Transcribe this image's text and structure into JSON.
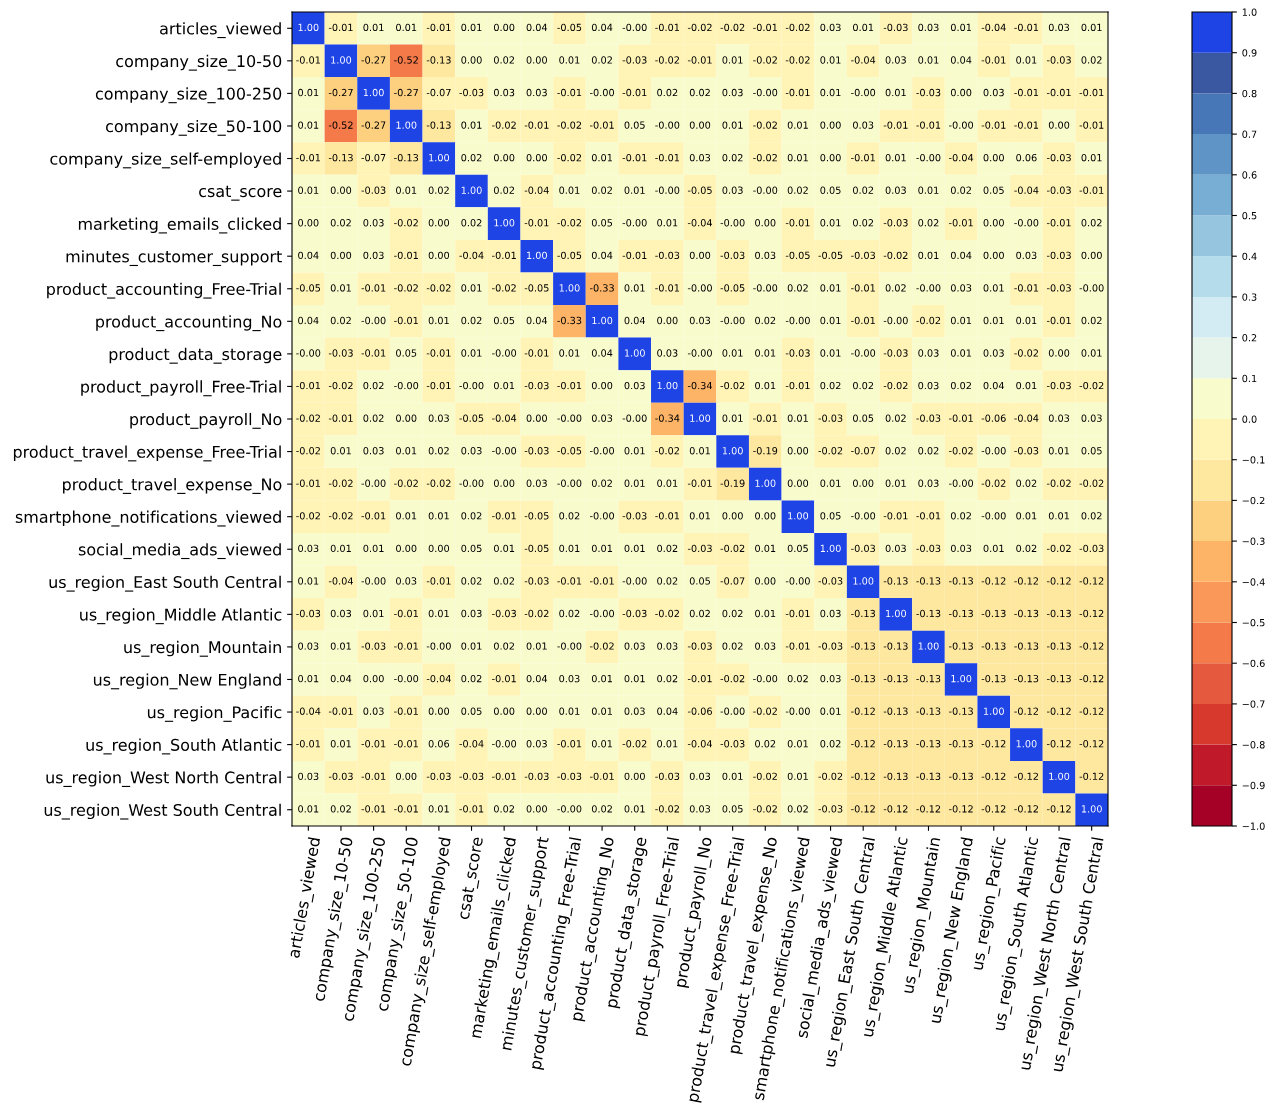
{
  "chart_data": {
    "type": "heatmap",
    "categories": [
      "articles_viewed",
      "company_size_10-50",
      "company_size_100-250",
      "company_size_50-100",
      "company_size_self-employed",
      "csat_score",
      "marketing_emails_clicked",
      "minutes_customer_support",
      "product_accounting_Free-Trial",
      "product_accounting_No",
      "product_data_storage",
      "product_payroll_Free-Trial",
      "product_payroll_No",
      "product_travel_expense_Free-Trial",
      "product_travel_expense_No",
      "smartphone_notifications_viewed",
      "social_media_ads_viewed",
      "us_region_East South Central",
      "us_region_Middle Atlantic",
      "us_region_Mountain",
      "us_region_New England",
      "us_region_Pacific",
      "us_region_South Atlantic",
      "us_region_West North Central",
      "us_region_West South Central"
    ],
    "y_categories": [
      "articles_viewed",
      "company_size_10-50",
      "company_size_100-250",
      "company_size_50-100",
      "company_size_self-employed",
      "csat_score",
      "marketing_emails_clicked",
      "minutes_customer_support",
      "product_accounting_Free-Trial",
      "product_accounting_No",
      "product_data_storage",
      "product_payroll_Free-Trial",
      "product_payroll_No",
      "product_travel_expense_Free-Trial",
      "product_travel_expense_No",
      "smartphone_notifications_viewed",
      "social_media_ads_viewed",
      "us_region_East South Central",
      "us_region_Middle Atlantic",
      "us_region_Mountain",
      "us_region_New England",
      "us_region_Pacific",
      "us_region_South Atlantic",
      "us_region_West North Central",
      "us_region_West South Central"
    ],
    "cells": [
      [
        1.0,
        -0.01,
        0.01,
        0.01,
        -0.01,
        0.01,
        0.0,
        0.04,
        -0.05,
        0.04,
        -0.0,
        -0.01,
        -0.02,
        -0.02,
        -0.01,
        -0.02,
        0.03,
        0.01,
        -0.03,
        0.03,
        0.01,
        -0.04,
        -0.01,
        0.03,
        0.01
      ],
      [
        -0.01,
        1.0,
        -0.27,
        -0.52,
        -0.13,
        0.0,
        0.02,
        0.0,
        0.01,
        0.02,
        -0.03,
        -0.02,
        -0.01,
        0.01,
        -0.02,
        -0.02,
        0.01,
        -0.04,
        0.03,
        0.01,
        0.04,
        -0.01,
        0.01,
        -0.03,
        0.02
      ],
      [
        0.01,
        -0.27,
        1.0,
        -0.27,
        -0.07,
        -0.03,
        0.03,
        0.03,
        -0.01,
        -0.0,
        -0.01,
        0.02,
        0.02,
        0.03,
        -0.0,
        -0.01,
        0.01,
        -0.0,
        0.01,
        -0.03,
        0.0,
        0.03,
        -0.01,
        -0.01,
        -0.01
      ],
      [
        0.01,
        -0.52,
        -0.27,
        1.0,
        -0.13,
        0.01,
        -0.02,
        -0.01,
        -0.02,
        -0.01,
        0.05,
        -0.0,
        0.0,
        0.01,
        -0.02,
        0.01,
        0.0,
        0.03,
        -0.01,
        -0.01,
        -0.0,
        -0.01,
        -0.01,
        0.0,
        -0.01
      ],
      [
        -0.01,
        -0.13,
        -0.07,
        -0.13,
        1.0,
        0.02,
        0.0,
        0.0,
        -0.02,
        0.01,
        -0.01,
        -0.01,
        0.03,
        0.02,
        -0.02,
        0.01,
        0.0,
        -0.01,
        0.01,
        -0.0,
        -0.04,
        0.0,
        0.06,
        -0.03,
        0.01
      ],
      [
        0.01,
        0.0,
        -0.03,
        0.01,
        0.02,
        1.0,
        0.02,
        -0.04,
        0.01,
        0.02,
        0.01,
        -0.0,
        -0.05,
        0.03,
        -0.0,
        0.02,
        0.05,
        0.02,
        0.03,
        0.01,
        0.02,
        0.05,
        -0.04,
        -0.03,
        -0.01
      ],
      [
        0.0,
        0.02,
        0.03,
        -0.02,
        0.0,
        0.02,
        1.0,
        -0.01,
        -0.02,
        0.05,
        -0.0,
        0.01,
        -0.04,
        -0.0,
        0.0,
        -0.01,
        0.01,
        0.02,
        -0.03,
        0.02,
        -0.01,
        0.0,
        -0.0,
        -0.01,
        0.02
      ],
      [
        0.04,
        0.0,
        0.03,
        -0.01,
        0.0,
        -0.04,
        -0.01,
        1.0,
        -0.05,
        0.04,
        -0.01,
        -0.03,
        0.0,
        -0.03,
        0.03,
        -0.05,
        -0.05,
        -0.03,
        -0.02,
        0.01,
        0.04,
        0.0,
        0.03,
        -0.03,
        0.0
      ],
      [
        -0.05,
        0.01,
        -0.01,
        -0.02,
        -0.02,
        0.01,
        -0.02,
        -0.05,
        1.0,
        -0.33,
        0.01,
        -0.01,
        -0.0,
        -0.05,
        -0.0,
        0.02,
        0.01,
        -0.01,
        0.02,
        -0.0,
        0.03,
        0.01,
        -0.01,
        -0.03,
        -0.0
      ],
      [
        0.04,
        0.02,
        -0.0,
        -0.01,
        0.01,
        0.02,
        0.05,
        0.04,
        -0.33,
        1.0,
        0.04,
        0.0,
        0.03,
        -0.0,
        0.02,
        -0.0,
        0.01,
        -0.01,
        -0.0,
        -0.02,
        0.01,
        0.01,
        0.01,
        -0.01,
        0.02
      ],
      [
        -0.0,
        -0.03,
        -0.01,
        0.05,
        -0.01,
        0.01,
        -0.0,
        -0.01,
        0.01,
        0.04,
        1.0,
        0.03,
        -0.0,
        0.01,
        0.01,
        -0.03,
        0.01,
        -0.0,
        -0.03,
        0.03,
        0.01,
        0.03,
        -0.02,
        0.0,
        0.01
      ],
      [
        -0.01,
        -0.02,
        0.02,
        -0.0,
        -0.01,
        -0.0,
        0.01,
        -0.03,
        -0.01,
        0.0,
        0.03,
        1.0,
        -0.34,
        -0.02,
        0.01,
        -0.01,
        0.02,
        0.02,
        -0.02,
        0.03,
        0.02,
        0.04,
        0.01,
        -0.03,
        -0.02
      ],
      [
        -0.02,
        -0.01,
        0.02,
        0.0,
        0.03,
        -0.05,
        -0.04,
        0.0,
        -0.0,
        0.03,
        -0.0,
        -0.34,
        1.0,
        0.01,
        -0.01,
        0.01,
        -0.03,
        0.05,
        0.02,
        -0.03,
        -0.01,
        -0.06,
        -0.04,
        0.03,
        0.03
      ],
      [
        -0.02,
        0.01,
        0.03,
        0.01,
        0.02,
        0.03,
        -0.0,
        -0.03,
        -0.05,
        -0.0,
        0.01,
        -0.02,
        0.01,
        1.0,
        -0.19,
        0.0,
        -0.02,
        -0.07,
        0.02,
        0.02,
        -0.02,
        -0.0,
        -0.03,
        0.01,
        0.05
      ],
      [
        -0.01,
        -0.02,
        -0.0,
        -0.02,
        -0.02,
        -0.0,
        0.0,
        0.03,
        -0.0,
        0.02,
        0.01,
        0.01,
        -0.01,
        -0.19,
        1.0,
        0.0,
        0.01,
        0.0,
        0.01,
        0.03,
        -0.0,
        -0.02,
        0.02,
        -0.02,
        -0.02
      ],
      [
        -0.02,
        -0.02,
        -0.01,
        0.01,
        0.01,
        0.02,
        -0.01,
        -0.05,
        0.02,
        -0.0,
        -0.03,
        -0.01,
        0.01,
        0.0,
        0.0,
        1.0,
        0.05,
        -0.0,
        -0.01,
        -0.01,
        0.02,
        -0.0,
        0.01,
        0.01,
        0.02
      ],
      [
        0.03,
        0.01,
        0.01,
        0.0,
        0.0,
        0.05,
        0.01,
        -0.05,
        0.01,
        0.01,
        0.01,
        0.02,
        -0.03,
        -0.02,
        0.01,
        0.05,
        1.0,
        -0.03,
        0.03,
        -0.03,
        0.03,
        0.01,
        0.02,
        -0.02,
        -0.03
      ],
      [
        0.01,
        -0.04,
        -0.0,
        0.03,
        -0.01,
        0.02,
        0.02,
        -0.03,
        -0.01,
        -0.01,
        -0.0,
        0.02,
        0.05,
        -0.07,
        0.0,
        -0.0,
        -0.03,
        1.0,
        -0.13,
        -0.13,
        -0.13,
        -0.12,
        -0.12,
        -0.12,
        -0.12
      ],
      [
        -0.03,
        0.03,
        0.01,
        -0.01,
        0.01,
        0.03,
        -0.03,
        -0.02,
        0.02,
        -0.0,
        -0.03,
        -0.02,
        0.02,
        0.02,
        0.01,
        -0.01,
        0.03,
        -0.13,
        1.0,
        -0.13,
        -0.13,
        -0.13,
        -0.13,
        -0.13,
        -0.12
      ],
      [
        0.03,
        0.01,
        -0.03,
        -0.01,
        -0.0,
        0.01,
        0.02,
        0.01,
        -0.0,
        -0.02,
        0.03,
        0.03,
        -0.03,
        0.02,
        0.03,
        -0.01,
        -0.03,
        -0.13,
        -0.13,
        1.0,
        -0.13,
        -0.13,
        -0.13,
        -0.13,
        -0.12
      ],
      [
        0.01,
        0.04,
        0.0,
        -0.0,
        -0.04,
        0.02,
        -0.01,
        0.04,
        0.03,
        0.01,
        0.01,
        0.02,
        -0.01,
        -0.02,
        -0.0,
        0.02,
        0.03,
        -0.13,
        -0.13,
        -0.13,
        1.0,
        -0.13,
        -0.13,
        -0.13,
        -0.12
      ],
      [
        -0.04,
        -0.01,
        0.03,
        -0.01,
        0.0,
        0.05,
        0.0,
        0.0,
        0.01,
        0.01,
        0.03,
        0.04,
        -0.06,
        -0.0,
        -0.02,
        -0.0,
        0.01,
        -0.12,
        -0.13,
        -0.13,
        -0.13,
        1.0,
        -0.12,
        -0.12,
        -0.12
      ],
      [
        -0.01,
        0.01,
        -0.01,
        -0.01,
        0.06,
        -0.04,
        -0.0,
        0.03,
        -0.01,
        0.01,
        -0.02,
        0.01,
        -0.04,
        -0.03,
        0.02,
        0.01,
        0.02,
        -0.12,
        -0.13,
        -0.13,
        -0.13,
        -0.12,
        1.0,
        -0.12,
        -0.12
      ],
      [
        0.03,
        -0.03,
        -0.01,
        0.0,
        -0.03,
        -0.03,
        -0.01,
        -0.03,
        -0.03,
        -0.01,
        0.0,
        -0.03,
        0.03,
        0.01,
        -0.02,
        0.01,
        -0.02,
        -0.12,
        -0.13,
        -0.13,
        -0.13,
        -0.12,
        -0.12,
        1.0,
        -0.12
      ],
      [
        0.01,
        0.02,
        -0.01,
        -0.01,
        0.01,
        -0.01,
        0.02,
        0.0,
        -0.0,
        0.02,
        0.01,
        -0.02,
        0.03,
        0.05,
        -0.02,
        0.02,
        -0.03,
        -0.12,
        -0.12,
        -0.12,
        -0.12,
        -0.12,
        -0.12,
        -0.12,
        1.0
      ]
    ],
    "cell_labels": [
      [
        "1.00",
        "-0.01",
        "0.01",
        "0.01",
        "-0.01",
        "0.01",
        "0.00",
        "0.04",
        "-0.05",
        "0.04",
        "-0.00",
        "-0.01",
        "-0.02",
        "-0.02",
        "-0.01",
        "-0.02",
        "0.03",
        "0.01",
        "-0.03",
        "0.03",
        "0.01",
        "-0.04",
        "-0.01",
        "0.03",
        "0.01"
      ],
      [
        "-0.01",
        "1.00",
        "-0.27",
        "-0.52",
        "-0.13",
        "0.00",
        "0.02",
        "0.00",
        "0.01",
        "0.02",
        "-0.03",
        "-0.02",
        "-0.01",
        "0.01",
        "-0.02",
        "-0.02",
        "0.01",
        "-0.04",
        "0.03",
        "0.01",
        "0.04",
        "-0.01",
        "0.01",
        "-0.03",
        "0.02"
      ],
      [
        "0.01",
        "-0.27",
        "1.00",
        "-0.27",
        "-0.07",
        "-0.03",
        "0.03",
        "0.03",
        "-0.01",
        "-0.00",
        "-0.01",
        "0.02",
        "0.02",
        "0.03",
        "-0.00",
        "-0.01",
        "0.01",
        "-0.00",
        "0.01",
        "-0.03",
        "0.00",
        "0.03",
        "-0.01",
        "-0.01",
        "-0.01"
      ],
      [
        "0.01",
        "-0.52",
        "-0.27",
        "1.00",
        "-0.13",
        "0.01",
        "-0.02",
        "-0.01",
        "-0.02",
        "-0.01",
        "0.05",
        "-0.00",
        "0.00",
        "0.01",
        "-0.02",
        "0.01",
        "0.00",
        "0.03",
        "-0.01",
        "-0.01",
        "-0.00",
        "-0.01",
        "-0.01",
        "0.00",
        "-0.01"
      ],
      [
        "-0.01",
        "-0.13",
        "-0.07",
        "-0.13",
        "1.00",
        "0.02",
        "0.00",
        "0.00",
        "-0.02",
        "0.01",
        "-0.01",
        "-0.01",
        "0.03",
        "0.02",
        "-0.02",
        "0.01",
        "0.00",
        "-0.01",
        "0.01",
        "-0.00",
        "-0.04",
        "0.00",
        "0.06",
        "-0.03",
        "0.01"
      ],
      [
        "0.01",
        "0.00",
        "-0.03",
        "0.01",
        "0.02",
        "1.00",
        "0.02",
        "-0.04",
        "0.01",
        "0.02",
        "0.01",
        "-0.00",
        "-0.05",
        "0.03",
        "-0.00",
        "0.02",
        "0.05",
        "0.02",
        "0.03",
        "0.01",
        "0.02",
        "0.05",
        "-0.04",
        "-0.03",
        "-0.01"
      ],
      [
        "0.00",
        "0.02",
        "0.03",
        "-0.02",
        "0.00",
        "0.02",
        "1.00",
        "-0.01",
        "-0.02",
        "0.05",
        "-0.00",
        "0.01",
        "-0.04",
        "-0.00",
        "0.00",
        "-0.01",
        "0.01",
        "0.02",
        "-0.03",
        "0.02",
        "-0.01",
        "0.00",
        "-0.00",
        "-0.01",
        "0.02"
      ],
      [
        "0.04",
        "0.00",
        "0.03",
        "-0.01",
        "0.00",
        "-0.04",
        "-0.01",
        "1.00",
        "-0.05",
        "0.04",
        "-0.01",
        "-0.03",
        "0.00",
        "-0.03",
        "0.03",
        "-0.05",
        "-0.05",
        "-0.03",
        "-0.02",
        "0.01",
        "0.04",
        "0.00",
        "0.03",
        "-0.03",
        "0.00"
      ],
      [
        "-0.05",
        "0.01",
        "-0.01",
        "-0.02",
        "-0.02",
        "0.01",
        "-0.02",
        "-0.05",
        "1.00",
        "-0.33",
        "0.01",
        "-0.01",
        "-0.00",
        "-0.05",
        "-0.00",
        "0.02",
        "0.01",
        "-0.01",
        "0.02",
        "-0.00",
        "0.03",
        "0.01",
        "-0.01",
        "-0.03",
        "-0.00"
      ],
      [
        "0.04",
        "0.02",
        "-0.00",
        "-0.01",
        "0.01",
        "0.02",
        "0.05",
        "0.04",
        "-0.33",
        "1.00",
        "0.04",
        "0.00",
        "0.03",
        "-0.00",
        "0.02",
        "-0.00",
        "0.01",
        "-0.01",
        "-0.00",
        "-0.02",
        "0.01",
        "0.01",
        "0.01",
        "-0.01",
        "0.02"
      ],
      [
        "-0.00",
        "-0.03",
        "-0.01",
        "0.05",
        "-0.01",
        "0.01",
        "-0.00",
        "-0.01",
        "0.01",
        "0.04",
        "1.00",
        "0.03",
        "-0.00",
        "0.01",
        "0.01",
        "-0.03",
        "0.01",
        "-0.00",
        "-0.03",
        "0.03",
        "0.01",
        "0.03",
        "-0.02",
        "0.00",
        "0.01"
      ],
      [
        "-0.01",
        "-0.02",
        "0.02",
        "-0.00",
        "-0.01",
        "-0.00",
        "0.01",
        "-0.03",
        "-0.01",
        "0.00",
        "0.03",
        "1.00",
        "-0.34",
        "-0.02",
        "0.01",
        "-0.01",
        "0.02",
        "0.02",
        "-0.02",
        "0.03",
        "0.02",
        "0.04",
        "0.01",
        "-0.03",
        "-0.02"
      ],
      [
        "-0.02",
        "-0.01",
        "0.02",
        "0.00",
        "0.03",
        "-0.05",
        "-0.04",
        "0.00",
        "-0.00",
        "0.03",
        "-0.00",
        "-0.34",
        "1.00",
        "0.01",
        "-0.01",
        "0.01",
        "-0.03",
        "0.05",
        "0.02",
        "-0.03",
        "-0.01",
        "-0.06",
        "-0.04",
        "0.03",
        "0.03"
      ],
      [
        "-0.02",
        "0.01",
        "0.03",
        "0.01",
        "0.02",
        "0.03",
        "-0.00",
        "-0.03",
        "-0.05",
        "-0.00",
        "0.01",
        "-0.02",
        "0.01",
        "1.00",
        "-0.19",
        "0.00",
        "-0.02",
        "-0.07",
        "0.02",
        "0.02",
        "-0.02",
        "-0.00",
        "-0.03",
        "0.01",
        "0.05"
      ],
      [
        "-0.01",
        "-0.02",
        "-0.00",
        "-0.02",
        "-0.02",
        "-0.00",
        "0.00",
        "0.03",
        "-0.00",
        "0.02",
        "0.01",
        "0.01",
        "-0.01",
        "-0.19",
        "1.00",
        "0.00",
        "0.01",
        "0.00",
        "0.01",
        "0.03",
        "-0.00",
        "-0.02",
        "0.02",
        "-0.02",
        "-0.02"
      ],
      [
        "-0.02",
        "-0.02",
        "-0.01",
        "0.01",
        "0.01",
        "0.02",
        "-0.01",
        "-0.05",
        "0.02",
        "-0.00",
        "-0.03",
        "-0.01",
        "0.01",
        "0.00",
        "0.00",
        "1.00",
        "0.05",
        "-0.00",
        "-0.01",
        "-0.01",
        "0.02",
        "-0.00",
        "0.01",
        "0.01",
        "0.02"
      ],
      [
        "0.03",
        "0.01",
        "0.01",
        "0.00",
        "0.00",
        "0.05",
        "0.01",
        "-0.05",
        "0.01",
        "0.01",
        "0.01",
        "0.02",
        "-0.03",
        "-0.02",
        "0.01",
        "0.05",
        "1.00",
        "-0.03",
        "0.03",
        "-0.03",
        "0.03",
        "0.01",
        "0.02",
        "-0.02",
        "-0.03"
      ],
      [
        "0.01",
        "-0.04",
        "-0.00",
        "0.03",
        "-0.01",
        "0.02",
        "0.02",
        "-0.03",
        "-0.01",
        "-0.01",
        "-0.00",
        "0.02",
        "0.05",
        "-0.07",
        "0.00",
        "-0.00",
        "-0.03",
        "1.00",
        "-0.13",
        "-0.13",
        "-0.13",
        "-0.12",
        "-0.12",
        "-0.12",
        "-0.12"
      ],
      [
        "-0.03",
        "0.03",
        "0.01",
        "-0.01",
        "0.01",
        "0.03",
        "-0.03",
        "-0.02",
        "0.02",
        "-0.00",
        "-0.03",
        "-0.02",
        "0.02",
        "0.02",
        "0.01",
        "-0.01",
        "0.03",
        "-0.13",
        "1.00",
        "-0.13",
        "-0.13",
        "-0.13",
        "-0.13",
        "-0.13",
        "-0.12"
      ],
      [
        "0.03",
        "0.01",
        "-0.03",
        "-0.01",
        "-0.00",
        "0.01",
        "0.02",
        "0.01",
        "-0.00",
        "-0.02",
        "0.03",
        "0.03",
        "-0.03",
        "0.02",
        "0.03",
        "-0.01",
        "-0.03",
        "-0.13",
        "-0.13",
        "1.00",
        "-0.13",
        "-0.13",
        "-0.13",
        "-0.13",
        "-0.12"
      ],
      [
        "0.01",
        "0.04",
        "0.00",
        "-0.00",
        "-0.04",
        "0.02",
        "-0.01",
        "0.04",
        "0.03",
        "0.01",
        "0.01",
        "0.02",
        "-0.01",
        "-0.02",
        "-0.00",
        "0.02",
        "0.03",
        "-0.13",
        "-0.13",
        "-0.13",
        "1.00",
        "-0.13",
        "-0.13",
        "-0.13",
        "-0.12"
      ],
      [
        "-0.04",
        "-0.01",
        "0.03",
        "-0.01",
        "0.00",
        "0.05",
        "0.00",
        "0.00",
        "0.01",
        "0.01",
        "0.03",
        "0.04",
        "-0.06",
        "-0.00",
        "-0.02",
        "-0.00",
        "0.01",
        "-0.12",
        "-0.13",
        "-0.13",
        "-0.13",
        "1.00",
        "-0.12",
        "-0.12",
        "-0.12"
      ],
      [
        "-0.01",
        "0.01",
        "-0.01",
        "-0.01",
        "0.06",
        "-0.04",
        "-0.00",
        "0.03",
        "-0.01",
        "0.01",
        "-0.02",
        "0.01",
        "-0.04",
        "-0.03",
        "0.02",
        "0.01",
        "0.02",
        "-0.12",
        "-0.13",
        "-0.13",
        "-0.13",
        "-0.12",
        "1.00",
        "-0.12",
        "-0.12"
      ],
      [
        "0.03",
        "-0.03",
        "-0.01",
        "0.00",
        "-0.03",
        "-0.03",
        "-0.01",
        "-0.03",
        "-0.03",
        "-0.01",
        "0.00",
        "-0.03",
        "0.03",
        "0.01",
        "-0.02",
        "0.01",
        "-0.02",
        "-0.12",
        "-0.13",
        "-0.13",
        "-0.13",
        "-0.12",
        "-0.12",
        "1.00",
        "-0.12"
      ],
      [
        "0.01",
        "0.02",
        "-0.01",
        "-0.01",
        "0.01",
        "-0.01",
        "0.02",
        "0.00",
        "-0.00",
        "0.02",
        "0.01",
        "-0.02",
        "0.03",
        "0.05",
        "-0.02",
        "0.02",
        "-0.03",
        "-0.12",
        "-0.12",
        "-0.12",
        "-0.12",
        "-0.12",
        "-0.12",
        "-0.12",
        "1.00"
      ]
    ],
    "clim": [
      -1.0,
      1.0
    ],
    "cticks": [
      {
        "value": -1.0,
        "label": "−1.0"
      },
      {
        "value": -0.9,
        "label": "−0.9"
      },
      {
        "value": -0.8,
        "label": "−0.8"
      },
      {
        "value": -0.7,
        "label": "−0.7"
      },
      {
        "value": -0.6,
        "label": "−0.6"
      },
      {
        "value": -0.5,
        "label": "−0.5"
      },
      {
        "value": -0.4,
        "label": "−0.4"
      },
      {
        "value": -0.3,
        "label": "−0.3"
      },
      {
        "value": -0.2,
        "label": "−0.2"
      },
      {
        "value": -0.1,
        "label": "−0.1"
      },
      {
        "value": 0,
        "label": "0.0"
      },
      0.1,
      0.2,
      0.3,
      0.4,
      0.5,
      0.6,
      0.7,
      0.8,
      0.9,
      {
        "value": 1,
        "label": "1.0"
      }
    ],
    "colors": [
      "#a50026",
      "#c0192a",
      "#d73a2c",
      "#e55a3e",
      "#f47a4a",
      "#f99858",
      "#fdb466",
      "#fdd080",
      "#fee8a0",
      "#fff4b6",
      "#f8fbcc",
      "#e6f4ec",
      "#d3ecf4",
      "#b4dcea",
      "#95c5df",
      "#78aed3",
      "#5f94c6",
      "#4777b6",
      "#3a58a2",
      "#1f44e6"
    ]
  }
}
